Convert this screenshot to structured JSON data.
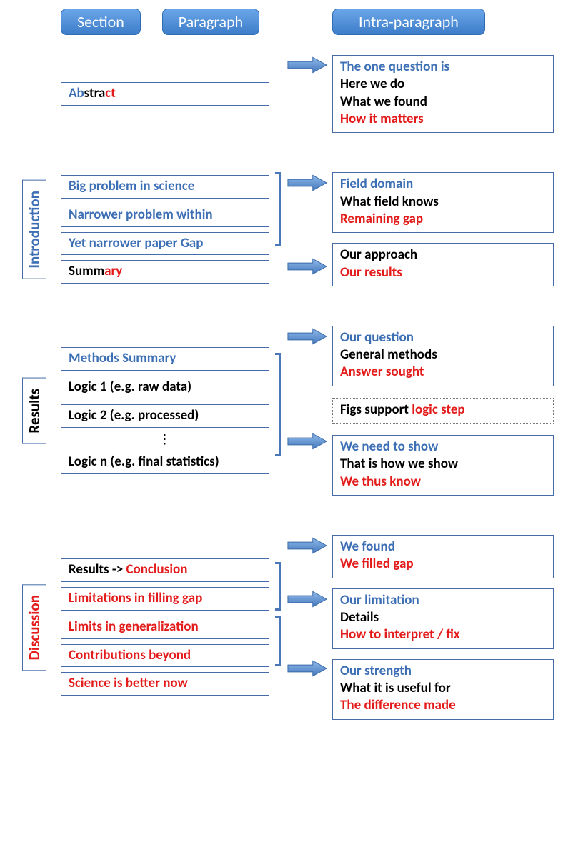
{
  "headers": {
    "section": "Section",
    "paragraph": "Paragraph",
    "intra": "Intra-paragraph"
  },
  "colors": {
    "blue": "#3d6fb5",
    "black": "#000000",
    "red": "#e31b1b",
    "box_border": "#456ca8",
    "arrow_fill": "#5f94d6",
    "header_grad_top": "#6aa6e8",
    "header_grad_bottom": "#3d7cc9"
  },
  "abstract": {
    "para_segments": [
      {
        "text": "Ab",
        "color": "blue"
      },
      {
        "text": "stra",
        "color": "black"
      },
      {
        "text": "ct",
        "color": "red"
      }
    ],
    "intra": [
      {
        "text": "The one question is",
        "color": "blue"
      },
      {
        "text": "Here we do",
        "color": "black"
      },
      {
        "text": "What we found",
        "color": "black"
      },
      {
        "text": "How it matters",
        "color": "red"
      }
    ]
  },
  "introduction": {
    "label": "Introduction",
    "label_color": "blue",
    "paras": {
      "p1": [
        {
          "text": "Big problem in science",
          "color": "blue"
        }
      ],
      "p2": [
        {
          "text": "Narrower problem within",
          "color": "blue"
        }
      ],
      "p3": [
        {
          "text": "Yet narrower paper Gap",
          "color": "blue"
        }
      ],
      "p4": [
        {
          "text": "Summ",
          "color": "black"
        },
        {
          "text": "ary",
          "color": "red"
        }
      ]
    },
    "intra1": [
      {
        "text": "Field domain",
        "color": "blue"
      },
      {
        "text": "What field knows",
        "color": "black"
      },
      {
        "text": "Remaining gap",
        "color": "red"
      }
    ],
    "intra2": [
      {
        "text": "Our approach",
        "color": "black"
      },
      {
        "text": "Our results",
        "color": "red"
      }
    ]
  },
  "results": {
    "label": "Results",
    "label_color": "black",
    "paras": {
      "p1": [
        {
          "text": "Methods Summary",
          "color": "blue"
        }
      ],
      "p2": [
        {
          "text": "Logic 1 (e.g. raw data)",
          "color": "black"
        }
      ],
      "p3": [
        {
          "text": "Logic 2 (e.g. processed)",
          "color": "black"
        }
      ],
      "p4": [
        {
          "text": "Logic n (e.g. final statistics)",
          "color": "black"
        }
      ]
    },
    "intra1": [
      {
        "text": "Our question",
        "color": "blue"
      },
      {
        "text": "General methods",
        "color": "black"
      },
      {
        "text": "Answer sought",
        "color": "red"
      }
    ],
    "intra_mid": [
      {
        "text": "Figs support ",
        "color": "black"
      },
      {
        "text": "logic step",
        "color": "red"
      }
    ],
    "intra2": [
      {
        "text": "We need to show",
        "color": "blue"
      },
      {
        "text": "That is how we show",
        "color": "black"
      },
      {
        "text": "We thus know",
        "color": "red"
      }
    ]
  },
  "discussion": {
    "label": "Discussion",
    "label_color": "red",
    "paras": {
      "p1": [
        {
          "text": "Results -> ",
          "color": "black"
        },
        {
          "text": "Conclusion",
          "color": "red"
        }
      ],
      "p2": [
        {
          "text": "Limitations in filling gap",
          "color": "red"
        }
      ],
      "p3": [
        {
          "text": "Limits in generalization",
          "color": "red"
        }
      ],
      "p4": [
        {
          "text": "Contributions beyond",
          "color": "red"
        }
      ],
      "p5": [
        {
          "text": "Science is better now",
          "color": "red"
        }
      ]
    },
    "intra1": [
      {
        "text": "We found",
        "color": "blue"
      },
      {
        "text": "We filled gap",
        "color": "red"
      }
    ],
    "intra2": [
      {
        "text": "Our limitation",
        "color": "blue"
      },
      {
        "text": "Details",
        "color": "black"
      },
      {
        "text": "How to interpret / fix",
        "color": "red"
      }
    ],
    "intra3": [
      {
        "text": "Our strength",
        "color": "blue"
      },
      {
        "text": "What it is useful for",
        "color": "black"
      },
      {
        "text": "The difference made",
        "color": "red"
      }
    ]
  }
}
